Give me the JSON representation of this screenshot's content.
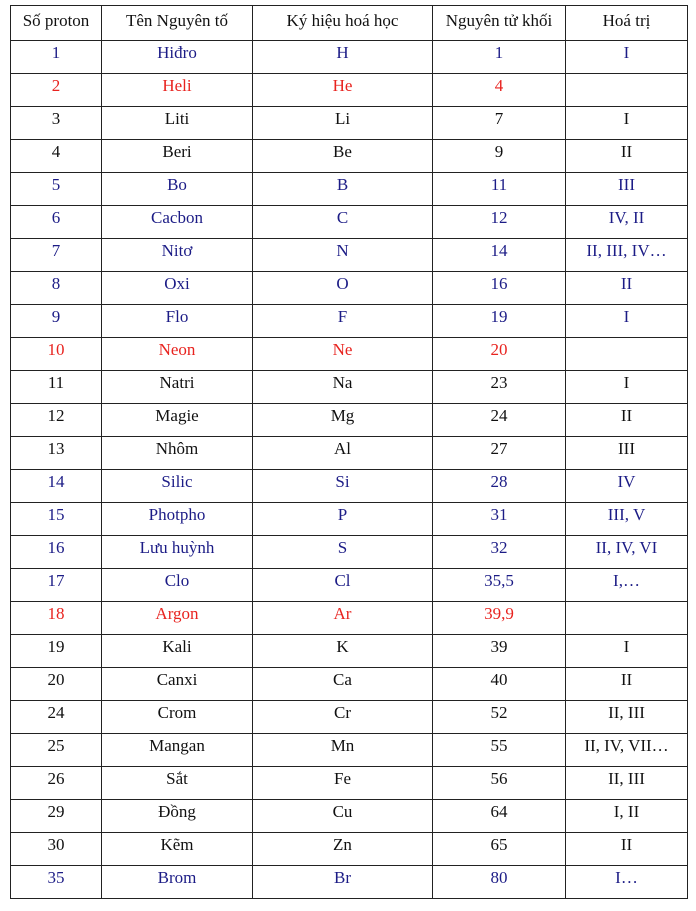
{
  "colors": {
    "blue": "#1c1c86",
    "red": "#e8231f",
    "black": "#111111"
  },
  "headers": [
    "Số proton",
    "Tên Nguyên tố",
    "Ký hiệu hoá học",
    "Nguyên tử khối",
    "Hoá trị"
  ],
  "rows": [
    {
      "color": "blue",
      "cells": [
        "1",
        "Hiđro",
        "H",
        "1",
        "I"
      ]
    },
    {
      "color": "red",
      "cells": [
        "2",
        "Heli",
        "He",
        "4",
        ""
      ]
    },
    {
      "color": "black",
      "cells": [
        "3",
        "Liti",
        "Li",
        "7",
        "I"
      ]
    },
    {
      "color": "black",
      "cells": [
        "4",
        "Beri",
        "Be",
        "9",
        "II"
      ]
    },
    {
      "color": "blue",
      "cells": [
        "5",
        "Bo",
        "B",
        "11",
        "III"
      ]
    },
    {
      "color": "blue",
      "cells": [
        "6",
        "Cacbon",
        "C",
        "12",
        "IV, II"
      ]
    },
    {
      "color": "blue",
      "cells": [
        "7",
        "Nitơ",
        "N",
        "14",
        "II, III, IV…"
      ]
    },
    {
      "color": "blue",
      "cells": [
        "8",
        "Oxi",
        "O",
        "16",
        "II"
      ]
    },
    {
      "color": "blue",
      "cells": [
        "9",
        "Flo",
        "F",
        "19",
        "I"
      ]
    },
    {
      "color": "red",
      "cells": [
        "10",
        "Neon",
        "Ne",
        "20",
        ""
      ]
    },
    {
      "color": "black",
      "cells": [
        "11",
        "Natri",
        "Na",
        "23",
        "I"
      ]
    },
    {
      "color": "black",
      "cells": [
        "12",
        "Magie",
        "Mg",
        "24",
        "II"
      ]
    },
    {
      "color": "black",
      "cells": [
        "13",
        "Nhôm",
        "Al",
        "27",
        "III"
      ]
    },
    {
      "color": "blue",
      "cells": [
        "14",
        "Silic",
        "Si",
        "28",
        "IV"
      ]
    },
    {
      "color": "blue",
      "cells": [
        "15",
        "Photpho",
        "P",
        "31",
        "III, V"
      ]
    },
    {
      "color": "blue",
      "cells": [
        "16",
        "Lưu huỳnh",
        "S",
        "32",
        "II, IV, VI"
      ]
    },
    {
      "color": "blue",
      "cells": [
        "17",
        "Clo",
        "Cl",
        "35,5",
        "I,…"
      ]
    },
    {
      "color": "red",
      "cells": [
        "18",
        "Argon",
        "Ar",
        "39,9",
        ""
      ]
    },
    {
      "color": "black",
      "cells": [
        "19",
        "Kali",
        "K",
        "39",
        "I"
      ]
    },
    {
      "color": "black",
      "cells": [
        "20",
        "Canxi",
        "Ca",
        "40",
        "II"
      ]
    },
    {
      "color": "black",
      "cells": [
        "24",
        "Crom",
        "Cr",
        "52",
        "II, III"
      ]
    },
    {
      "color": "black",
      "cells": [
        "25",
        "Mangan",
        "Mn",
        "55",
        "II, IV, VII…"
      ]
    },
    {
      "color": "black",
      "cells": [
        "26",
        "Sắt",
        "Fe",
        "56",
        "II, III"
      ]
    },
    {
      "color": "black",
      "cells": [
        "29",
        "Đồng",
        "Cu",
        "64",
        "I, II"
      ]
    },
    {
      "color": "black",
      "cells": [
        "30",
        "Kẽm",
        "Zn",
        "65",
        "II"
      ]
    },
    {
      "color": "blue",
      "cells": [
        "35",
        "Brom",
        "Br",
        "80",
        "I…"
      ]
    }
  ]
}
